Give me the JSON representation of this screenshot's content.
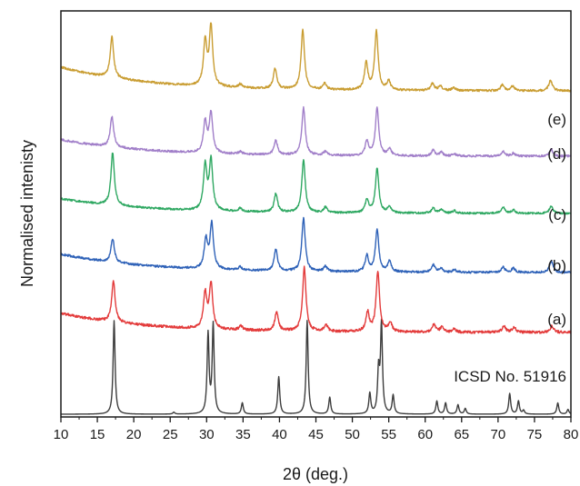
{
  "chart_data": {
    "type": "line",
    "title": "",
    "xlabel": "2θ (deg.)",
    "ylabel": "Normalised intenisty",
    "xlim": [
      10,
      80
    ],
    "x_ticks": [
      10,
      15,
      20,
      25,
      30,
      35,
      40,
      45,
      50,
      55,
      60,
      65,
      70,
      75,
      80
    ],
    "y_ticks_shown": false,
    "grid": false,
    "legend": "inline labels at right",
    "series": [
      {
        "name": "ICSD No. 51916",
        "color": "#3d3d3d",
        "offset": 0,
        "baseline": 0.0,
        "noise": 0.0,
        "peaks": [
          {
            "x": 17.3,
            "h": 1.0
          },
          {
            "x": 25.5,
            "h": 0.02
          },
          {
            "x": 30.2,
            "h": 0.85
          },
          {
            "x": 30.9,
            "h": 0.95
          },
          {
            "x": 34.9,
            "h": 0.12
          },
          {
            "x": 39.9,
            "h": 0.4
          },
          {
            "x": 43.8,
            "h": 1.0
          },
          {
            "x": 46.9,
            "h": 0.18
          },
          {
            "x": 52.4,
            "h": 0.22
          },
          {
            "x": 53.6,
            "h": 0.45
          },
          {
            "x": 54.0,
            "h": 0.95
          },
          {
            "x": 55.6,
            "h": 0.2
          },
          {
            "x": 61.6,
            "h": 0.14
          },
          {
            "x": 62.8,
            "h": 0.12
          },
          {
            "x": 64.5,
            "h": 0.1
          },
          {
            "x": 65.5,
            "h": 0.06
          },
          {
            "x": 71.6,
            "h": 0.22
          },
          {
            "x": 72.8,
            "h": 0.14
          },
          {
            "x": 73.5,
            "h": 0.04
          },
          {
            "x": 78.2,
            "h": 0.12
          },
          {
            "x": 79.6,
            "h": 0.05
          }
        ]
      },
      {
        "name": "(a)",
        "color": "#e33b3b",
        "offset": 1,
        "baseline": 0.3,
        "noise": 0.02,
        "peaks": [
          {
            "x": 17.2,
            "h": 0.65
          },
          {
            "x": 29.8,
            "h": 0.55
          },
          {
            "x": 30.6,
            "h": 0.7
          },
          {
            "x": 34.7,
            "h": 0.06
          },
          {
            "x": 39.6,
            "h": 0.3
          },
          {
            "x": 43.4,
            "h": 1.0
          },
          {
            "x": 46.4,
            "h": 0.1
          },
          {
            "x": 52.1,
            "h": 0.3
          },
          {
            "x": 53.5,
            "h": 0.95
          },
          {
            "x": 55.2,
            "h": 0.15
          },
          {
            "x": 61.2,
            "h": 0.12
          },
          {
            "x": 62.3,
            "h": 0.08
          },
          {
            "x": 64.0,
            "h": 0.05
          },
          {
            "x": 70.8,
            "h": 0.1
          },
          {
            "x": 72.2,
            "h": 0.08
          },
          {
            "x": 77.4,
            "h": 0.1
          }
        ]
      },
      {
        "name": "(b)",
        "color": "#2f62b8",
        "offset": 2,
        "baseline": 0.35,
        "noise": 0.02,
        "peaks": [
          {
            "x": 17.1,
            "h": 0.45
          },
          {
            "x": 29.9,
            "h": 0.55
          },
          {
            "x": 30.7,
            "h": 0.85
          },
          {
            "x": 34.6,
            "h": 0.06
          },
          {
            "x": 39.5,
            "h": 0.4
          },
          {
            "x": 43.3,
            "h": 1.0
          },
          {
            "x": 46.3,
            "h": 0.1
          },
          {
            "x": 52.0,
            "h": 0.3
          },
          {
            "x": 53.4,
            "h": 0.8
          },
          {
            "x": 55.1,
            "h": 0.2
          },
          {
            "x": 61.1,
            "h": 0.14
          },
          {
            "x": 62.2,
            "h": 0.08
          },
          {
            "x": 64.0,
            "h": 0.05
          },
          {
            "x": 70.7,
            "h": 0.1
          },
          {
            "x": 72.1,
            "h": 0.08
          },
          {
            "x": 77.3,
            "h": 0.22
          }
        ]
      },
      {
        "name": "(c)",
        "color": "#2fa862",
        "offset": 3,
        "baseline": 0.28,
        "noise": 0.018,
        "peaks": [
          {
            "x": 17.1,
            "h": 1.0
          },
          {
            "x": 29.8,
            "h": 0.85
          },
          {
            "x": 30.6,
            "h": 0.95
          },
          {
            "x": 34.6,
            "h": 0.06
          },
          {
            "x": 39.5,
            "h": 0.35
          },
          {
            "x": 43.3,
            "h": 1.0
          },
          {
            "x": 46.3,
            "h": 0.1
          },
          {
            "x": 52.0,
            "h": 0.25
          },
          {
            "x": 53.4,
            "h": 0.85
          },
          {
            "x": 55.1,
            "h": 0.12
          },
          {
            "x": 61.1,
            "h": 0.1
          },
          {
            "x": 62.2,
            "h": 0.07
          },
          {
            "x": 64.0,
            "h": 0.05
          },
          {
            "x": 70.7,
            "h": 0.12
          },
          {
            "x": 72.1,
            "h": 0.06
          },
          {
            "x": 77.3,
            "h": 0.14
          }
        ]
      },
      {
        "name": "(d)",
        "color": "#a17fc9",
        "offset": 4,
        "baseline": 0.35,
        "noise": 0.022,
        "peaks": [
          {
            "x": 17.0,
            "h": 0.65
          },
          {
            "x": 29.8,
            "h": 0.65
          },
          {
            "x": 30.6,
            "h": 0.85
          },
          {
            "x": 34.6,
            "h": 0.05
          },
          {
            "x": 39.5,
            "h": 0.3
          },
          {
            "x": 43.3,
            "h": 1.0
          },
          {
            "x": 46.3,
            "h": 0.08
          },
          {
            "x": 52.0,
            "h": 0.3
          },
          {
            "x": 53.4,
            "h": 1.0
          },
          {
            "x": 55.1,
            "h": 0.15
          },
          {
            "x": 61.1,
            "h": 0.12
          },
          {
            "x": 62.2,
            "h": 0.08
          },
          {
            "x": 64.0,
            "h": 0.05
          },
          {
            "x": 70.7,
            "h": 0.1
          },
          {
            "x": 72.1,
            "h": 0.06
          },
          {
            "x": 77.3,
            "h": 0.14
          }
        ]
      },
      {
        "name": "(e)",
        "color": "#c99d32",
        "offset": 5,
        "baseline": 0.4,
        "noise": 0.018,
        "peaks": [
          {
            "x": 17.0,
            "h": 0.7
          },
          {
            "x": 29.8,
            "h": 0.75
          },
          {
            "x": 30.6,
            "h": 1.0
          },
          {
            "x": 34.6,
            "h": 0.06
          },
          {
            "x": 39.4,
            "h": 0.35
          },
          {
            "x": 43.2,
            "h": 1.0
          },
          {
            "x": 46.2,
            "h": 0.1
          },
          {
            "x": 51.9,
            "h": 0.45
          },
          {
            "x": 53.3,
            "h": 1.0
          },
          {
            "x": 55.0,
            "h": 0.15
          },
          {
            "x": 61.0,
            "h": 0.12
          },
          {
            "x": 62.1,
            "h": 0.08
          },
          {
            "x": 63.9,
            "h": 0.05
          },
          {
            "x": 70.6,
            "h": 0.1
          },
          {
            "x": 72.0,
            "h": 0.08
          },
          {
            "x": 77.2,
            "h": 0.18
          }
        ]
      }
    ]
  }
}
